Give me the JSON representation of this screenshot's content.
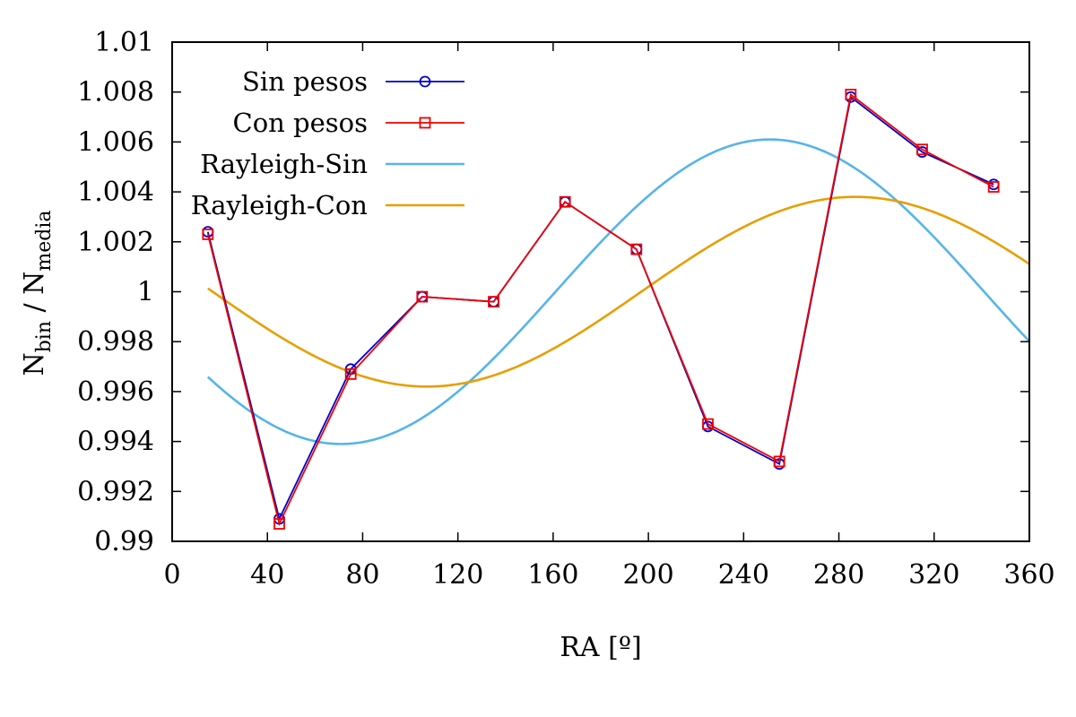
{
  "chart_data": {
    "type": "line",
    "xlabel": "RA [º]",
    "ylabel_main": "N",
    "ylabel_sub1": "bin",
    "ylabel_sep": " / N",
    "ylabel_sub2": "media",
    "xlim": [
      0,
      360
    ],
    "ylim": [
      0.99,
      1.01
    ],
    "xticks": [
      0,
      40,
      80,
      120,
      160,
      200,
      240,
      280,
      320,
      360
    ],
    "yticks": [
      0.99,
      0.992,
      0.994,
      0.996,
      0.998,
      1.0,
      1.002,
      1.004,
      1.006,
      1.008,
      1.01
    ],
    "ytick_labels": [
      "0.99",
      "0.992",
      "0.994",
      "0.996",
      "0.998",
      "1",
      "1.002",
      "1.004",
      "1.006",
      "1.008",
      "1.01"
    ],
    "grid": false,
    "legend_position": "top-left",
    "series": [
      {
        "name": "Sin pesos",
        "color": "#0000cc",
        "marker": "circle",
        "x": [
          15,
          45,
          75,
          105,
          135,
          165,
          195,
          225,
          255,
          285,
          315,
          345
        ],
        "y": [
          1.0024,
          0.9909,
          0.9969,
          0.9998,
          0.9996,
          1.0036,
          1.0017,
          0.9946,
          0.9931,
          1.0078,
          1.0056,
          1.0043
        ]
      },
      {
        "name": "Con pesos",
        "color": "#ee0000",
        "marker": "square",
        "x": [
          15,
          45,
          75,
          105,
          135,
          165,
          195,
          225,
          255,
          285,
          315,
          345
        ],
        "y": [
          1.0023,
          0.9907,
          0.9967,
          0.9998,
          0.9996,
          1.0036,
          1.0017,
          0.9947,
          0.9932,
          1.0079,
          1.0057,
          1.0042
        ]
      },
      {
        "name": "Rayleigh-Sin",
        "color": "#56b4e9",
        "function": {
          "mean": 1.0,
          "amplitude": 0.0061,
          "phase_deg": 251,
          "x_start": 15,
          "x_end": 360
        }
      },
      {
        "name": "Rayleigh-Con",
        "color": "#e69f00",
        "function": {
          "mean": 1.0,
          "amplitude": 0.0038,
          "phase_deg": 287,
          "x_start": 15,
          "x_end": 360
        }
      }
    ]
  }
}
